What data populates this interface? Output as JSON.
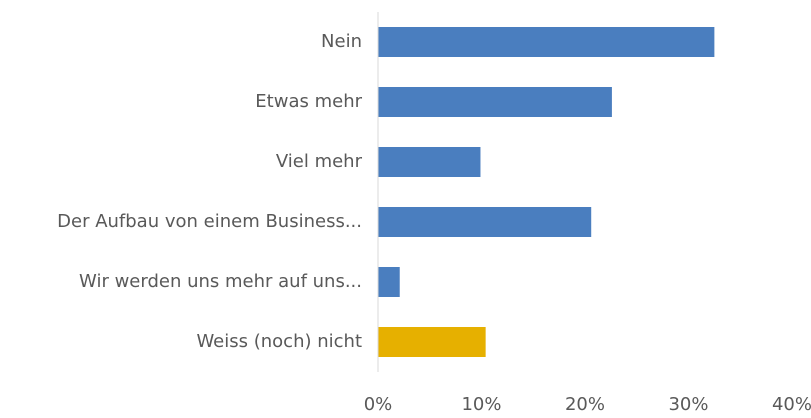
{
  "chart_data": {
    "type": "barh",
    "categories": [
      "Nein",
      "Etwas mehr",
      "Viel mehr",
      "Der Aufbau von einem Business...",
      "Wir werden uns mehr auf uns...",
      "Weiss (noch) nicht"
    ],
    "values": [
      32.5,
      22.6,
      9.9,
      20.6,
      2.1,
      10.4
    ],
    "colors": [
      "#4a7ebf",
      "#4a7ebf",
      "#4a7ebf",
      "#4a7ebf",
      "#4a7ebf",
      "#e6b000"
    ],
    "xlim": [
      0,
      40
    ],
    "xticks": [
      {
        "value": 0,
        "label": "0%"
      },
      {
        "value": 10,
        "label": "10%"
      },
      {
        "value": 20,
        "label": "20%"
      },
      {
        "value": 30,
        "label": "30%"
      },
      {
        "value": 40,
        "label": "40%"
      }
    ],
    "grid": false
  }
}
